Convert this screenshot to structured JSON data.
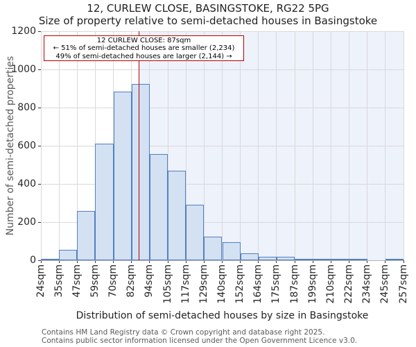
{
  "title": "12, CURLEW CLOSE, BASINGSTOKE, RG22 5PG",
  "subtitle": "Size of property relative to semi-detached houses in Basingstoke",
  "annotation": {
    "line1": "12 CURLEW CLOSE: 87sqm",
    "line2": "← 51% of semi-detached houses are smaller (2,234)",
    "line3": "49% of semi-detached houses are larger (2,144) →"
  },
  "footer": {
    "line1": "Contains HM Land Registry data © Crown copyright and database right 2025.",
    "line2": "Contains public sector information licensed under the Open Government Licence v3.0."
  },
  "chart_data": {
    "type": "bar",
    "title": "12, CURLEW CLOSE, BASINGSTOKE, RG22 5PG",
    "subtitle": "Size of property relative to semi-detached houses in Basingstoke",
    "xlabel": "Distribution of semi-detached houses by size in Basingstoke",
    "ylabel": "Number of semi-detached properties",
    "bin_edges_sqm": [
      24,
      35,
      47,
      59,
      70,
      82,
      94,
      105,
      117,
      129,
      140,
      152,
      164,
      175,
      187,
      199,
      210,
      222,
      234,
      245,
      257
    ],
    "bin_labels": [
      "24sqm",
      "35sqm",
      "47sqm",
      "59sqm",
      "70sqm",
      "82sqm",
      "94sqm",
      "105sqm",
      "117sqm",
      "129sqm",
      "140sqm",
      "152sqm",
      "164sqm",
      "175sqm",
      "187sqm",
      "199sqm",
      "210sqm",
      "222sqm",
      "234sqm",
      "245sqm",
      "257sqm"
    ],
    "values": [
      5,
      55,
      260,
      610,
      885,
      925,
      555,
      470,
      290,
      122,
      95,
      35,
      18,
      18,
      8,
      3,
      3,
      3,
      0,
      3
    ],
    "y_ticks": [
      0,
      200,
      400,
      600,
      800,
      1000,
      1200
    ],
    "ylim": [
      0,
      1200
    ],
    "grid": true,
    "legend": "none",
    "marker_value_sqm": 87,
    "marker_label": "87sqm",
    "colors": {
      "bar_fill": "#d3e1f3",
      "bar_edge": "#537fc0",
      "marker_line": "#b40000",
      "annotation_border": "#b40000",
      "shade_right_of_marker": "#edf2fb",
      "gridline": "#d9d9d9"
    }
  }
}
